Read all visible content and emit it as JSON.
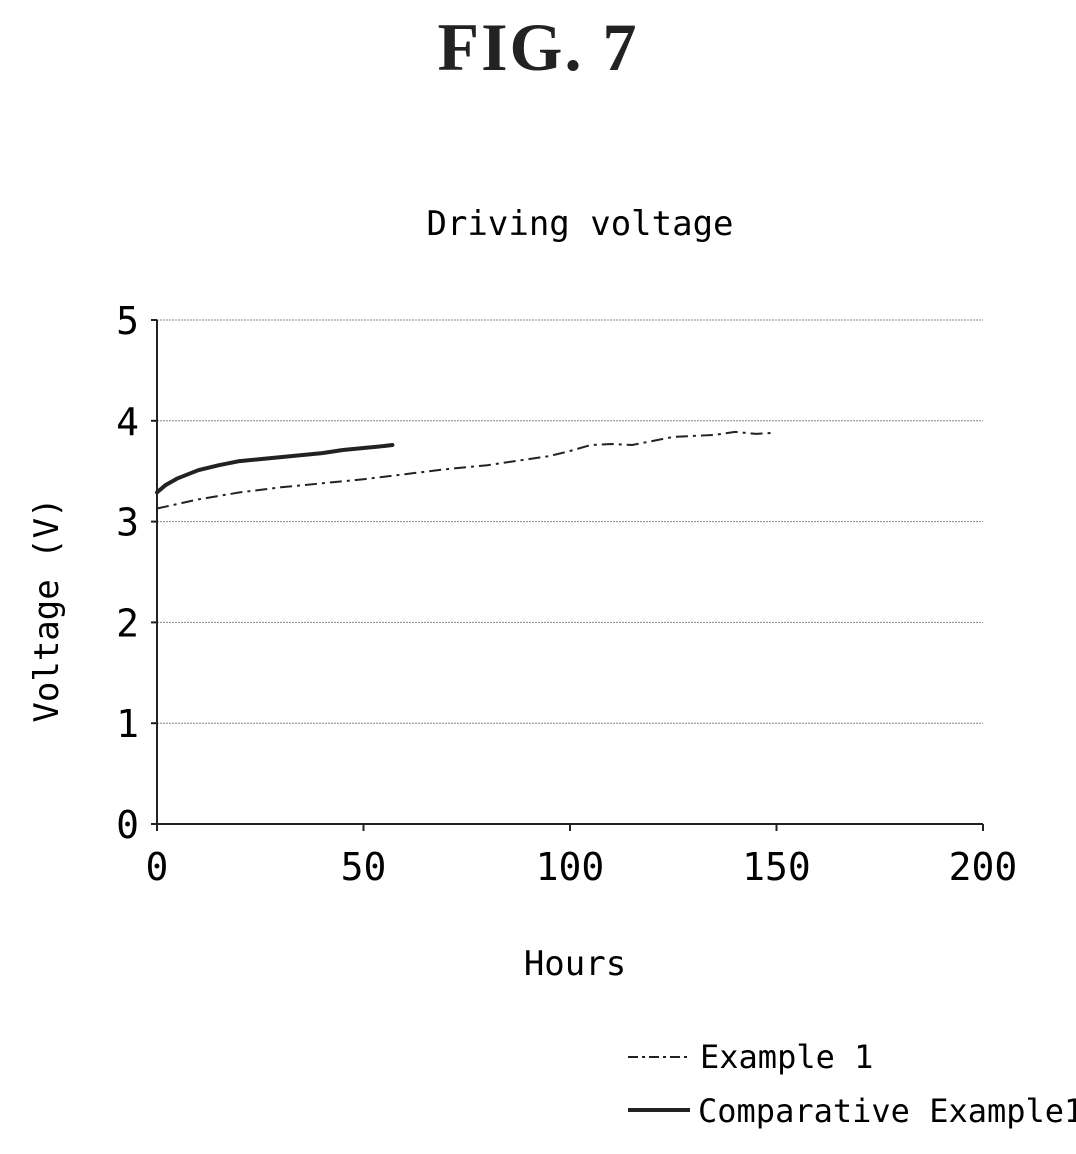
{
  "figure": {
    "label": "FIG. 7"
  },
  "chart_data": {
    "type": "line",
    "title": "Driving voltage",
    "xlabel": "Hours",
    "ylabel": "Voltage (V)",
    "xlim": [
      0,
      200
    ],
    "ylim": [
      0,
      5
    ],
    "xticks": [
      0,
      50,
      100,
      150,
      200
    ],
    "yticks": [
      0,
      1,
      2,
      3,
      4,
      5
    ],
    "grid": "horizontal",
    "legend_position": "bottom-right",
    "series": [
      {
        "name": "Example 1",
        "style": "dash-dot",
        "x": [
          0,
          10,
          20,
          30,
          40,
          50,
          60,
          70,
          80,
          90,
          95,
          100,
          105,
          110,
          115,
          120,
          125,
          130,
          135,
          140,
          145,
          149
        ],
        "y": [
          3.13,
          3.22,
          3.29,
          3.34,
          3.38,
          3.42,
          3.47,
          3.52,
          3.56,
          3.62,
          3.65,
          3.7,
          3.76,
          3.77,
          3.76,
          3.8,
          3.84,
          3.85,
          3.86,
          3.89,
          3.87,
          3.88
        ]
      },
      {
        "name": "Comparative Example1",
        "style": "solid",
        "x": [
          0,
          2,
          5,
          10,
          15,
          20,
          25,
          30,
          35,
          40,
          45,
          50,
          55,
          57
        ],
        "y": [
          3.29,
          3.36,
          3.43,
          3.51,
          3.56,
          3.6,
          3.62,
          3.64,
          3.66,
          3.68,
          3.71,
          3.73,
          3.75,
          3.76
        ]
      }
    ]
  }
}
